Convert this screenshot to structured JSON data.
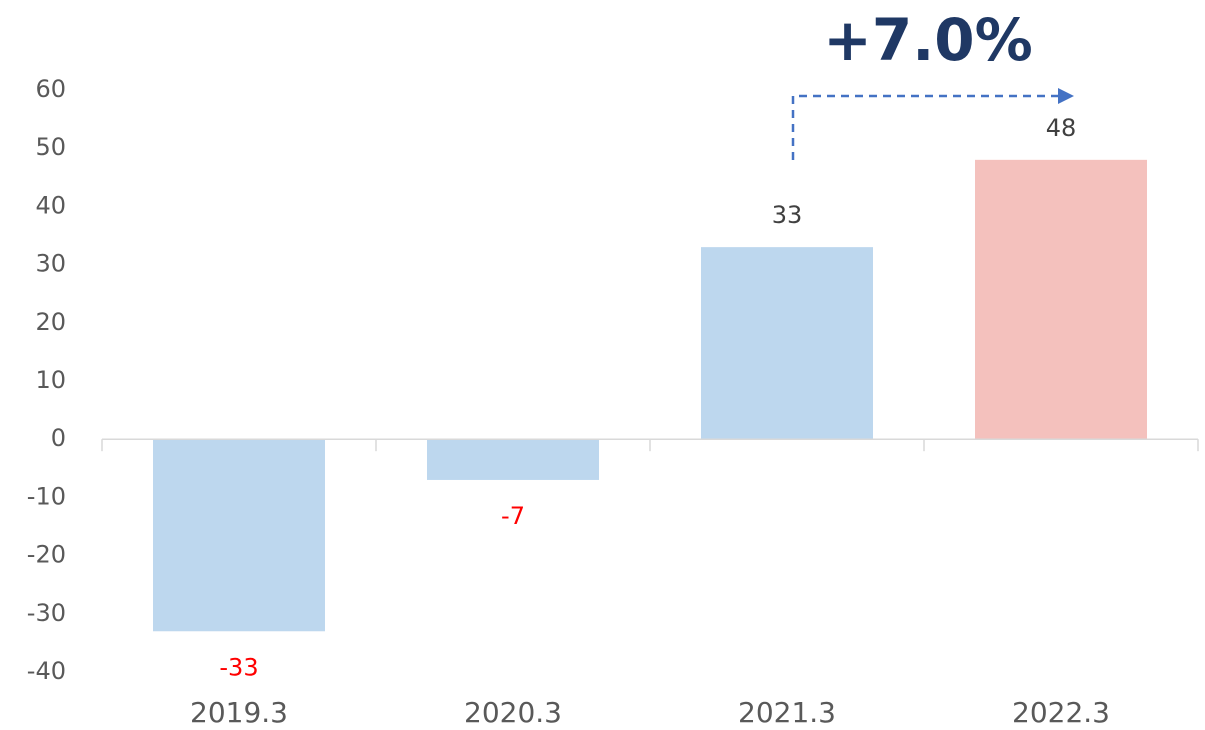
{
  "chart_data": {
    "type": "bar",
    "annotation": "+7.0%",
    "categories": [
      "2019.3",
      "2020.3",
      "2021.3",
      "2022.3"
    ],
    "values": [
      -33,
      -7,
      33,
      48
    ],
    "colors": [
      "#bdd7ee",
      "#bdd7ee",
      "#bdd7ee",
      "#f4c1bd"
    ],
    "value_label_colors": [
      "#ff0000",
      "#ff0000",
      "#404040",
      "#404040"
    ],
    "ylim": [
      -40,
      60
    ],
    "yticks": [
      -40,
      -30,
      -20,
      -10,
      0,
      10,
      20,
      30,
      40,
      50,
      60
    ],
    "grid": false
  }
}
